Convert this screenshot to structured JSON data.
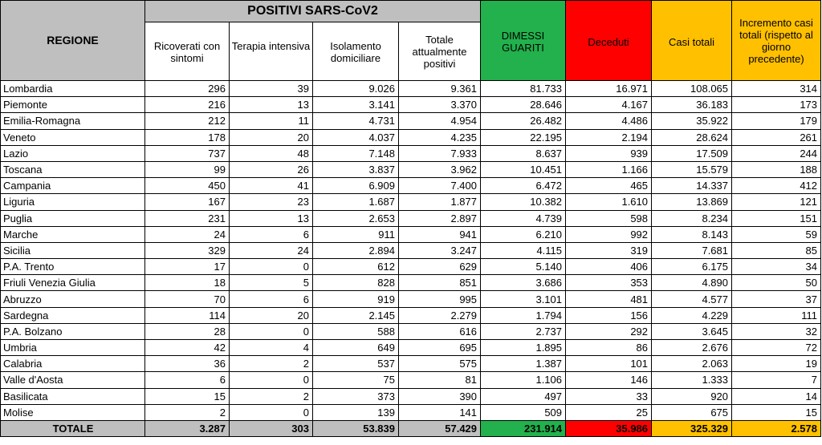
{
  "header": {
    "regione": "REGIONE",
    "positivi_group": "POSITIVI SARS-CoV2",
    "ricoverati": "Ricoverati con sintomi",
    "terapia": "Terapia intensiva",
    "isolamento": "Isolamento domiciliare",
    "totale_positivi": "Totale attualmente positivi",
    "dimessi": "DIMESSI GUARITI",
    "deceduti": "Deceduti",
    "casi_totali": "Casi totali",
    "incremento": "Incremento casi totali (rispetto al giorno precedente)"
  },
  "colors": {
    "gray": "#bfbfbf",
    "green": "#22b14c",
    "red": "#ff0000",
    "orange": "#ffc000"
  },
  "rows": [
    [
      "Lombardia",
      "296",
      "39",
      "9.026",
      "9.361",
      "81.733",
      "16.971",
      "108.065",
      "314"
    ],
    [
      "Piemonte",
      "216",
      "13",
      "3.141",
      "3.370",
      "28.646",
      "4.167",
      "36.183",
      "173"
    ],
    [
      "Emilia-Romagna",
      "212",
      "11",
      "4.731",
      "4.954",
      "26.482",
      "4.486",
      "35.922",
      "179"
    ],
    [
      "Veneto",
      "178",
      "20",
      "4.037",
      "4.235",
      "22.195",
      "2.194",
      "28.624",
      "261"
    ],
    [
      "Lazio",
      "737",
      "48",
      "7.148",
      "7.933",
      "8.637",
      "939",
      "17.509",
      "244"
    ],
    [
      "Toscana",
      "99",
      "26",
      "3.837",
      "3.962",
      "10.451",
      "1.166",
      "15.579",
      "188"
    ],
    [
      "Campania",
      "450",
      "41",
      "6.909",
      "7.400",
      "6.472",
      "465",
      "14.337",
      "412"
    ],
    [
      "Liguria",
      "167",
      "23",
      "1.687",
      "1.877",
      "10.382",
      "1.610",
      "13.869",
      "121"
    ],
    [
      "Puglia",
      "231",
      "13",
      "2.653",
      "2.897",
      "4.739",
      "598",
      "8.234",
      "151"
    ],
    [
      "Marche",
      "24",
      "6",
      "911",
      "941",
      "6.210",
      "992",
      "8.143",
      "59"
    ],
    [
      "Sicilia",
      "329",
      "24",
      "2.894",
      "3.247",
      "4.115",
      "319",
      "7.681",
      "85"
    ],
    [
      "P.A. Trento",
      "17",
      "0",
      "612",
      "629",
      "5.140",
      "406",
      "6.175",
      "34"
    ],
    [
      "Friuli Venezia Giulia",
      "18",
      "5",
      "828",
      "851",
      "3.686",
      "353",
      "4.890",
      "50"
    ],
    [
      "Abruzzo",
      "70",
      "6",
      "919",
      "995",
      "3.101",
      "481",
      "4.577",
      "37"
    ],
    [
      "Sardegna",
      "114",
      "20",
      "2.145",
      "2.279",
      "1.794",
      "156",
      "4.229",
      "111"
    ],
    [
      "P.A. Bolzano",
      "28",
      "0",
      "588",
      "616",
      "2.737",
      "292",
      "3.645",
      "32"
    ],
    [
      "Umbria",
      "42",
      "4",
      "649",
      "695",
      "1.895",
      "86",
      "2.676",
      "72"
    ],
    [
      "Calabria",
      "36",
      "2",
      "537",
      "575",
      "1.387",
      "101",
      "2.063",
      "19"
    ],
    [
      "Valle d'Aosta",
      "6",
      "0",
      "75",
      "81",
      "1.106",
      "146",
      "1.333",
      "7"
    ],
    [
      "Basilicata",
      "15",
      "2",
      "373",
      "390",
      "497",
      "33",
      "920",
      "14"
    ],
    [
      "Molise",
      "2",
      "0",
      "139",
      "141",
      "509",
      "25",
      "675",
      "15"
    ]
  ],
  "total": [
    "TOTALE",
    "3.287",
    "303",
    "53.839",
    "57.429",
    "231.914",
    "35.986",
    "325.329",
    "2.578"
  ]
}
